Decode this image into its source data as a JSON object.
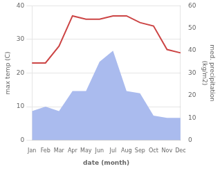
{
  "chart_data": {
    "type": "line",
    "xlabel": "date (month)",
    "ylabel": "max temp (C)",
    "y2label": "med. precipitation\n(kg/m2)",
    "categories": [
      "Jan",
      "Feb",
      "Mar",
      "Apr",
      "May",
      "Jun",
      "Jul",
      "Aug",
      "Sep",
      "Oct",
      "Nov",
      "Dec"
    ],
    "series": [
      {
        "type": "area",
        "axis": "y2",
        "color": "#aabbee",
        "values": [
          13,
          15,
          13,
          22,
          22,
          35,
          40,
          22,
          21,
          11,
          10,
          10
        ]
      },
      {
        "type": "line",
        "axis": "y",
        "color": "#cc4444",
        "values": [
          23,
          23,
          28,
          37,
          36,
          36,
          37,
          37,
          35,
          34,
          27,
          26
        ]
      }
    ],
    "ylim": [
      0,
      40
    ],
    "yticks": [
      0,
      10,
      20,
      30,
      40
    ],
    "y2lim": [
      0,
      60
    ],
    "y2ticks": [
      0,
      10,
      20,
      30,
      40,
      50,
      60
    ],
    "grid": true
  }
}
